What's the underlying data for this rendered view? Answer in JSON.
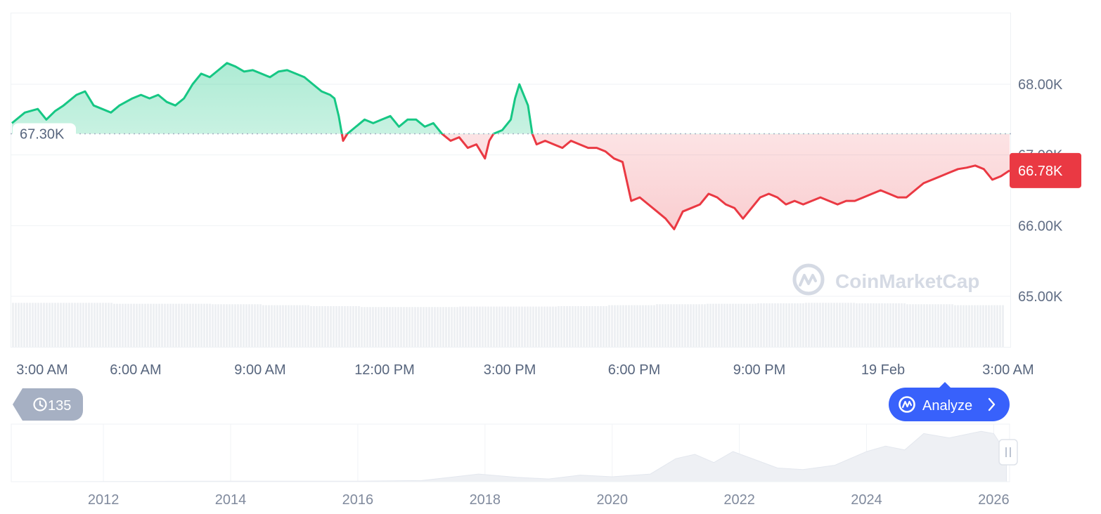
{
  "chart_data": {
    "type": "area",
    "y_ticks": [
      "68.00K",
      "67.00K",
      "66.00K",
      "65.00K"
    ],
    "y_tick_values": [
      68000,
      67000,
      66000,
      65000
    ],
    "ylim": [
      65000,
      69000
    ],
    "x_ticks": [
      "3:00 AM",
      "6:00 AM",
      "9:00 AM",
      "12:00 PM",
      "3:00 PM",
      "6:00 PM",
      "9:00 PM",
      "19 Feb",
      "3:00 AM"
    ],
    "baseline_value": 67300,
    "baseline_label": "67.30K",
    "current_value": 66780,
    "current_label": "66.78K",
    "above_color": "#16c784",
    "below_color": "#ea3943",
    "price_points": [
      [
        0,
        67450
      ],
      [
        3,
        67600
      ],
      [
        6,
        67650
      ],
      [
        8,
        67500
      ],
      [
        10,
        67620
      ],
      [
        12,
        67700
      ],
      [
        15,
        67850
      ],
      [
        17,
        67900
      ],
      [
        19,
        67700
      ],
      [
        21,
        67650
      ],
      [
        23,
        67600
      ],
      [
        25,
        67700
      ],
      [
        28,
        67800
      ],
      [
        30,
        67850
      ],
      [
        32,
        67800
      ],
      [
        34,
        67850
      ],
      [
        36,
        67750
      ],
      [
        38,
        67700
      ],
      [
        40,
        67800
      ],
      [
        42,
        68000
      ],
      [
        44,
        68150
      ],
      [
        46,
        68100
      ],
      [
        48,
        68200
      ],
      [
        50,
        68300
      ],
      [
        52,
        68250
      ],
      [
        54,
        68180
      ],
      [
        56,
        68200
      ],
      [
        58,
        68150
      ],
      [
        60,
        68100
      ],
      [
        62,
        68180
      ],
      [
        64,
        68200
      ],
      [
        66,
        68150
      ],
      [
        68,
        68100
      ],
      [
        70,
        68000
      ],
      [
        72,
        67900
      ],
      [
        74,
        67850
      ],
      [
        75,
        67800
      ],
      [
        76,
        67550
      ],
      [
        77,
        67200
      ],
      [
        78,
        67300
      ],
      [
        80,
        67400
      ],
      [
        82,
        67500
      ],
      [
        84,
        67450
      ],
      [
        86,
        67500
      ],
      [
        88,
        67550
      ],
      [
        90,
        67400
      ],
      [
        92,
        67500
      ],
      [
        94,
        67500
      ],
      [
        96,
        67400
      ],
      [
        98,
        67450
      ],
      [
        100,
        67300
      ],
      [
        102,
        67200
      ],
      [
        104,
        67250
      ],
      [
        106,
        67100
      ],
      [
        108,
        67150
      ],
      [
        110,
        66950
      ],
      [
        111,
        67200
      ],
      [
        112,
        67300
      ],
      [
        114,
        67350
      ],
      [
        116,
        67500
      ],
      [
        117,
        67800
      ],
      [
        118,
        68000
      ],
      [
        120,
        67700
      ],
      [
        121,
        67300
      ],
      [
        122,
        67150
      ],
      [
        124,
        67200
      ],
      [
        126,
        67150
      ],
      [
        128,
        67100
      ],
      [
        130,
        67200
      ],
      [
        132,
        67150
      ],
      [
        134,
        67100
      ],
      [
        136,
        67100
      ],
      [
        138,
        67050
      ],
      [
        140,
        66950
      ],
      [
        142,
        66900
      ],
      [
        144,
        66350
      ],
      [
        146,
        66400
      ],
      [
        148,
        66300
      ],
      [
        150,
        66200
      ],
      [
        152,
        66100
      ],
      [
        154,
        65950
      ],
      [
        156,
        66200
      ],
      [
        158,
        66250
      ],
      [
        160,
        66300
      ],
      [
        162,
        66450
      ],
      [
        164,
        66400
      ],
      [
        166,
        66300
      ],
      [
        168,
        66250
      ],
      [
        170,
        66100
      ],
      [
        172,
        66250
      ],
      [
        174,
        66400
      ],
      [
        176,
        66450
      ],
      [
        178,
        66400
      ],
      [
        180,
        66300
      ],
      [
        182,
        66350
      ],
      [
        184,
        66300
      ],
      [
        186,
        66350
      ],
      [
        188,
        66400
      ],
      [
        190,
        66350
      ],
      [
        192,
        66300
      ],
      [
        194,
        66350
      ],
      [
        196,
        66350
      ],
      [
        198,
        66400
      ],
      [
        200,
        66450
      ],
      [
        202,
        66500
      ],
      [
        204,
        66450
      ],
      [
        206,
        66400
      ],
      [
        208,
        66400
      ],
      [
        210,
        66500
      ],
      [
        212,
        66600
      ],
      [
        214,
        66650
      ],
      [
        216,
        66700
      ],
      [
        218,
        66750
      ],
      [
        220,
        66800
      ],
      [
        222,
        66820
      ],
      [
        224,
        66850
      ],
      [
        226,
        66800
      ],
      [
        228,
        66650
      ],
      [
        230,
        66700
      ],
      [
        232,
        66780
      ]
    ],
    "volume_levels": [
      0.95,
      0.95,
      0.93,
      0.93,
      0.92,
      0.9,
      0.88,
      0.86,
      0.86,
      0.87,
      0.87,
      0.88,
      0.9,
      0.92,
      0.93,
      0.94,
      0.95,
      0.94,
      0.92,
      0.9
    ],
    "navigator": {
      "x_ticks": [
        "2012",
        "2014",
        "2016",
        "2018",
        "2020",
        "2022",
        "2024",
        "2026"
      ],
      "x_tick_values": [
        2012,
        2014,
        2016,
        2018,
        2020,
        2022,
        2024,
        2026
      ],
      "xlim": [
        2010.55,
        2026.25
      ],
      "series": [
        [
          2010.55,
          0.0
        ],
        [
          2014.0,
          0.01
        ],
        [
          2016.0,
          0.01
        ],
        [
          2017.0,
          0.02
        ],
        [
          2017.9,
          0.14
        ],
        [
          2018.5,
          0.08
        ],
        [
          2019.0,
          0.05
        ],
        [
          2019.5,
          0.12
        ],
        [
          2020.0,
          0.09
        ],
        [
          2020.6,
          0.14
        ],
        [
          2021.0,
          0.42
        ],
        [
          2021.3,
          0.5
        ],
        [
          2021.6,
          0.35
        ],
        [
          2021.9,
          0.55
        ],
        [
          2022.3,
          0.38
        ],
        [
          2022.6,
          0.25
        ],
        [
          2023.0,
          0.22
        ],
        [
          2023.5,
          0.3
        ],
        [
          2024.0,
          0.55
        ],
        [
          2024.3,
          0.65
        ],
        [
          2024.6,
          0.58
        ],
        [
          2024.9,
          0.88
        ],
        [
          2025.3,
          0.8
        ],
        [
          2025.8,
          0.92
        ],
        [
          2026.0,
          0.88
        ],
        [
          2026.1,
          0.7
        ],
        [
          2026.2,
          0.65
        ]
      ]
    }
  },
  "watermark": {
    "brand": "CoinMarketCap",
    "icon": "coinmarketcap-logo-icon"
  },
  "controls": {
    "history_count": "135",
    "history_icon": "history-clock-icon",
    "analyze_label": "Analyze",
    "analyze_icon": "analyze-logo-icon",
    "analyze_color": "#3861fb",
    "history_color": "#a6b0c3"
  }
}
